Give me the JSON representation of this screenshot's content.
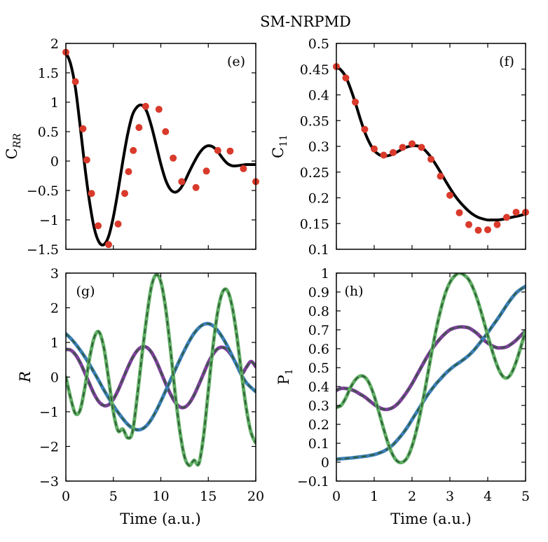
{
  "title": "SM-NRPMD",
  "colors": {
    "exact": "#000000",
    "markers": "#d93a2b",
    "purple": "#7b3f98",
    "blue": "#3b7fb6",
    "green": "#5fae63",
    "dash": "#2f5a37"
  },
  "chart_data": [
    {
      "id": "e",
      "type": "line",
      "panel_label": "(e)",
      "ylabel_main": "C",
      "ylabel_sub": "RR",
      "xlabel": "",
      "xlim": [
        0,
        20
      ],
      "ylim": [
        -1.5,
        2
      ],
      "xticks": [
        0,
        5,
        10,
        15,
        20
      ],
      "xtick_labels": [
        "",
        "",
        "",
        "",
        ""
      ],
      "yticks": [
        -1.5,
        -1,
        -0.5,
        0,
        0.5,
        1,
        1.5,
        2
      ],
      "ytick_labels": [
        "−1.5",
        "−1",
        "−0.5",
        "0",
        "0.5",
        "1",
        "1.5",
        "2"
      ],
      "series": [
        {
          "name": "exact",
          "style": "line",
          "color": "#000000",
          "x": [
            0,
            0.5,
            1,
            1.5,
            2,
            2.5,
            3,
            3.5,
            4,
            4.5,
            5,
            5.5,
            6,
            6.5,
            7,
            7.5,
            8,
            8.5,
            9,
            9.5,
            10,
            10.5,
            11,
            11.5,
            12,
            12.5,
            13,
            13.5,
            14,
            14.5,
            15,
            15.5,
            16,
            16.5,
            17,
            17.5,
            18,
            18.5,
            19,
            19.5,
            20
          ],
          "y": [
            1.85,
            1.65,
            1.25,
            0.6,
            -0.1,
            -0.7,
            -1.15,
            -1.38,
            -1.42,
            -1.28,
            -0.95,
            -0.5,
            0.0,
            0.45,
            0.78,
            0.92,
            0.95,
            0.85,
            0.6,
            0.28,
            -0.05,
            -0.32,
            -0.48,
            -0.53,
            -0.48,
            -0.35,
            -0.18,
            -0.02,
            0.12,
            0.22,
            0.26,
            0.24,
            0.16,
            0.05,
            -0.04,
            -0.08,
            -0.08,
            -0.07,
            -0.06,
            -0.06,
            -0.06
          ]
        },
        {
          "name": "SM-NRPMD",
          "style": "markers",
          "color": "#d93a2b",
          "x": [
            0,
            1,
            1.8,
            2.2,
            2.7,
            3.4,
            4.5,
            5.5,
            6.2,
            6.6,
            7.1,
            7.7,
            8.4,
            9.8,
            10.5,
            11.3,
            12.2,
            13.7,
            14.8,
            16.0,
            17.3,
            18.7,
            20.0
          ],
          "y": [
            1.85,
            1.35,
            0.55,
            0.02,
            -0.55,
            -1.1,
            -1.42,
            -1.07,
            -0.55,
            -0.18,
            0.18,
            0.57,
            0.93,
            0.88,
            0.5,
            0.05,
            -0.35,
            -0.45,
            -0.17,
            0.18,
            0.17,
            -0.13,
            -0.35
          ]
        }
      ]
    },
    {
      "id": "f",
      "type": "line",
      "panel_label": "(f)",
      "ylabel_main": "C",
      "ylabel_sub": "11",
      "xlabel": "",
      "xlim": [
        0,
        5
      ],
      "ylim": [
        0.1,
        0.5
      ],
      "xticks": [
        0,
        1,
        2,
        3,
        4,
        5
      ],
      "xtick_labels": [
        "",
        "",
        "",
        "",
        "",
        ""
      ],
      "yticks": [
        0.1,
        0.15,
        0.2,
        0.25,
        0.3,
        0.35,
        0.4,
        0.45,
        0.5
      ],
      "ytick_labels": [
        "0.1",
        "0.15",
        "0.2",
        "0.25",
        "0.3",
        "0.35",
        "0.4",
        "0.45",
        "0.5"
      ],
      "series": [
        {
          "name": "exact",
          "style": "line",
          "color": "#000000",
          "x": [
            0,
            0.125,
            0.25,
            0.375,
            0.5,
            0.625,
            0.75,
            0.875,
            1,
            1.125,
            1.25,
            1.375,
            1.5,
            1.625,
            1.75,
            1.875,
            2,
            2.125,
            2.25,
            2.375,
            2.5,
            2.625,
            2.75,
            2.875,
            3,
            3.125,
            3.25,
            3.375,
            3.5,
            3.625,
            3.75,
            3.875,
            4,
            4.125,
            4.25,
            4.375,
            4.5,
            4.625,
            4.75,
            4.875,
            5
          ],
          "y": [
            0.455,
            0.448,
            0.435,
            0.412,
            0.385,
            0.355,
            0.328,
            0.307,
            0.292,
            0.284,
            0.281,
            0.282,
            0.285,
            0.29,
            0.295,
            0.299,
            0.301,
            0.301,
            0.298,
            0.29,
            0.279,
            0.265,
            0.25,
            0.234,
            0.219,
            0.205,
            0.193,
            0.183,
            0.174,
            0.167,
            0.162,
            0.159,
            0.157,
            0.157,
            0.157,
            0.158,
            0.16,
            0.162,
            0.164,
            0.166,
            0.169
          ]
        },
        {
          "name": "SM-NRPMD",
          "style": "markers",
          "color": "#d93a2b",
          "x": [
            0,
            0.25,
            0.5,
            0.75,
            1.0,
            1.25,
            1.5,
            1.75,
            2.0,
            2.25,
            2.5,
            2.75,
            3.0,
            3.25,
            3.5,
            3.75,
            4.0,
            4.25,
            4.5,
            4.75,
            5.0
          ],
          "y": [
            0.455,
            0.433,
            0.386,
            0.333,
            0.295,
            0.283,
            0.288,
            0.298,
            0.305,
            0.298,
            0.275,
            0.242,
            0.205,
            0.171,
            0.148,
            0.137,
            0.138,
            0.148,
            0.162,
            0.172,
            0.172
          ]
        }
      ]
    },
    {
      "id": "g",
      "type": "line",
      "panel_label": "(g)",
      "ylabel_main": "R",
      "ylabel_sub": "",
      "xlabel": "Time (a.u.)",
      "xlim": [
        0,
        20
      ],
      "ylim": [
        -3,
        3
      ],
      "xticks": [
        0,
        5,
        10,
        15,
        20
      ],
      "xtick_labels": [
        "0",
        "5",
        "10",
        "15",
        "20"
      ],
      "yticks": [
        -3,
        -2,
        -1,
        0,
        1,
        2,
        3
      ],
      "ytick_labels": [
        "−3",
        "−2",
        "−1",
        "0",
        "1",
        "2",
        "3"
      ],
      "series": [
        {
          "name": "purple",
          "style": "line",
          "color": "#7b3f98",
          "dash_overlay": "#2f5a37",
          "x": [
            0,
            0.5,
            1,
            1.5,
            2,
            2.5,
            3,
            3.5,
            4,
            4.5,
            5,
            5.5,
            6,
            6.5,
            7,
            7.5,
            8,
            8.5,
            9,
            9.5,
            10,
            10.5,
            11,
            11.5,
            12,
            12.5,
            13,
            13.5,
            14,
            14.5,
            15,
            15.5,
            16,
            16.5,
            17,
            17.5,
            18,
            18.5,
            19,
            19.5,
            20
          ],
          "y": [
            0.8,
            0.78,
            0.65,
            0.42,
            0.12,
            -0.2,
            -0.5,
            -0.72,
            -0.82,
            -0.8,
            -0.64,
            -0.38,
            -0.06,
            0.26,
            0.55,
            0.76,
            0.87,
            0.86,
            0.72,
            0.47,
            0.15,
            -0.18,
            -0.48,
            -0.72,
            -0.86,
            -0.87,
            -0.75,
            -0.52,
            -0.22,
            0.1,
            0.42,
            0.66,
            0.82,
            0.86,
            0.78,
            0.6,
            0.35,
            0.1,
            0.28,
            0.45,
            0.3
          ]
        },
        {
          "name": "blue",
          "style": "line",
          "color": "#3b7fb6",
          "dash_overlay": "#2f5a37",
          "x": [
            0,
            0.5,
            1,
            1.5,
            2,
            2.5,
            3,
            3.5,
            4,
            4.5,
            5,
            5.5,
            6,
            6.5,
            7,
            7.5,
            8,
            8.5,
            9,
            9.5,
            10,
            10.5,
            11,
            11.5,
            12,
            12.5,
            13,
            13.5,
            14,
            14.5,
            15,
            15.5,
            16,
            16.5,
            17,
            17.5,
            18,
            18.5,
            19,
            19.5,
            20
          ],
          "y": [
            1.25,
            1.12,
            0.96,
            0.78,
            0.58,
            0.36,
            0.12,
            -0.12,
            -0.37,
            -0.6,
            -0.82,
            -1.02,
            -1.2,
            -1.36,
            -1.47,
            -1.52,
            -1.5,
            -1.4,
            -1.22,
            -0.98,
            -0.7,
            -0.4,
            -0.1,
            0.2,
            0.5,
            0.78,
            1.04,
            1.26,
            1.42,
            1.52,
            1.54,
            1.48,
            1.34,
            1.14,
            0.9,
            0.62,
            0.34,
            0.06,
            -0.16,
            -0.3,
            -0.42
          ]
        },
        {
          "name": "green",
          "style": "line",
          "color": "#5fae63",
          "dash_overlay": "#2f5a37",
          "x": [
            0,
            0.5,
            1,
            1.5,
            2,
            2.5,
            3,
            3.5,
            4,
            4.5,
            5,
            5.5,
            6,
            6.5,
            7,
            7.5,
            8,
            8.5,
            9,
            9.5,
            10,
            10.5,
            11,
            11.5,
            12,
            12.5,
            13,
            13.5,
            14,
            14.5,
            15,
            15.5,
            16,
            16.5,
            17,
            17.5,
            18,
            18.5,
            19,
            19.5,
            20
          ],
          "y": [
            0.0,
            -0.6,
            -1.05,
            -0.95,
            -0.3,
            0.55,
            1.15,
            1.3,
            0.85,
            -0.05,
            -1.0,
            -1.55,
            -1.5,
            -1.75,
            -1.6,
            -0.6,
            0.6,
            1.7,
            2.6,
            2.95,
            2.75,
            2.0,
            0.85,
            -0.45,
            -1.55,
            -2.3,
            -2.55,
            -2.4,
            -2.5,
            -1.7,
            -0.4,
            0.9,
            1.9,
            2.45,
            2.5,
            2.05,
            1.2,
            0.1,
            -0.9,
            -1.6,
            -1.9
          ]
        }
      ]
    },
    {
      "id": "h",
      "type": "line",
      "panel_label": "(h)",
      "ylabel_main": "P",
      "ylabel_sub": "1",
      "xlabel": "Time (a.u.)",
      "xlim": [
        0,
        5
      ],
      "ylim": [
        -0.1,
        1
      ],
      "xticks": [
        0,
        1,
        2,
        3,
        4,
        5
      ],
      "xtick_labels": [
        "0",
        "1",
        "2",
        "3",
        "4",
        "5"
      ],
      "yticks": [
        -0.1,
        0,
        0.1,
        0.2,
        0.3,
        0.4,
        0.5,
        0.6,
        0.7,
        0.8,
        0.9,
        1
      ],
      "ytick_labels": [
        "−0.1",
        "0",
        "0.1",
        "0.2",
        "0.3",
        "0.4",
        "0.5",
        "0.6",
        "0.7",
        "0.8",
        "0.9",
        "1"
      ],
      "series": [
        {
          "name": "purple",
          "style": "line",
          "color": "#7b3f98",
          "dash_overlay": "#2f5a37",
          "x": [
            0,
            0.125,
            0.25,
            0.375,
            0.5,
            0.625,
            0.75,
            0.875,
            1,
            1.125,
            1.25,
            1.375,
            1.5,
            1.625,
            1.75,
            1.875,
            2,
            2.125,
            2.25,
            2.375,
            2.5,
            2.625,
            2.75,
            2.875,
            3,
            3.125,
            3.25,
            3.375,
            3.5,
            3.625,
            3.75,
            3.875,
            4,
            4.125,
            4.25,
            4.375,
            4.5,
            4.625,
            4.75,
            4.875,
            5
          ],
          "y": [
            0.38,
            0.39,
            0.39,
            0.385,
            0.375,
            0.36,
            0.345,
            0.325,
            0.305,
            0.29,
            0.28,
            0.28,
            0.29,
            0.31,
            0.34,
            0.375,
            0.415,
            0.46,
            0.505,
            0.55,
            0.59,
            0.625,
            0.655,
            0.68,
            0.7,
            0.71,
            0.715,
            0.715,
            0.71,
            0.695,
            0.675,
            0.65,
            0.63,
            0.615,
            0.605,
            0.605,
            0.61,
            0.625,
            0.645,
            0.67,
            0.695
          ]
        },
        {
          "name": "blue",
          "style": "line",
          "color": "#3b7fb6",
          "dash_overlay": "#2f5a37",
          "x": [
            0,
            0.125,
            0.25,
            0.375,
            0.5,
            0.625,
            0.75,
            0.875,
            1,
            1.125,
            1.25,
            1.375,
            1.5,
            1.625,
            1.75,
            1.875,
            2,
            2.125,
            2.25,
            2.375,
            2.5,
            2.625,
            2.75,
            2.875,
            3,
            3.125,
            3.25,
            3.375,
            3.5,
            3.625,
            3.75,
            3.875,
            4,
            4.125,
            4.25,
            4.375,
            4.5,
            4.625,
            4.75,
            4.875,
            5
          ],
          "y": [
            0.015,
            0.018,
            0.02,
            0.022,
            0.025,
            0.028,
            0.031,
            0.035,
            0.04,
            0.048,
            0.058,
            0.073,
            0.093,
            0.12,
            0.15,
            0.185,
            0.225,
            0.265,
            0.305,
            0.345,
            0.38,
            0.412,
            0.44,
            0.467,
            0.49,
            0.51,
            0.527,
            0.545,
            0.565,
            0.59,
            0.62,
            0.652,
            0.685,
            0.72,
            0.755,
            0.792,
            0.83,
            0.865,
            0.895,
            0.915,
            0.93
          ]
        },
        {
          "name": "green",
          "style": "line",
          "color": "#5fae63",
          "dash_overlay": "#2f5a37",
          "x": [
            0,
            0.125,
            0.25,
            0.375,
            0.5,
            0.625,
            0.75,
            0.875,
            1,
            1.125,
            1.25,
            1.375,
            1.5,
            1.625,
            1.75,
            1.875,
            2,
            2.125,
            2.25,
            2.375,
            2.5,
            2.625,
            2.75,
            2.875,
            3,
            3.125,
            3.25,
            3.375,
            3.5,
            3.625,
            3.75,
            3.875,
            4,
            4.125,
            4.25,
            4.375,
            4.5,
            4.625,
            4.75,
            4.875,
            5
          ],
          "y": [
            0.29,
            0.3,
            0.34,
            0.395,
            0.435,
            0.455,
            0.45,
            0.415,
            0.35,
            0.265,
            0.175,
            0.095,
            0.035,
            0.003,
            0.0,
            0.025,
            0.085,
            0.175,
            0.29,
            0.42,
            0.56,
            0.69,
            0.8,
            0.89,
            0.95,
            0.985,
            1.0,
            0.99,
            0.965,
            0.915,
            0.845,
            0.76,
            0.67,
            0.585,
            0.51,
            0.46,
            0.445,
            0.47,
            0.53,
            0.61,
            0.695
          ]
        }
      ]
    }
  ]
}
